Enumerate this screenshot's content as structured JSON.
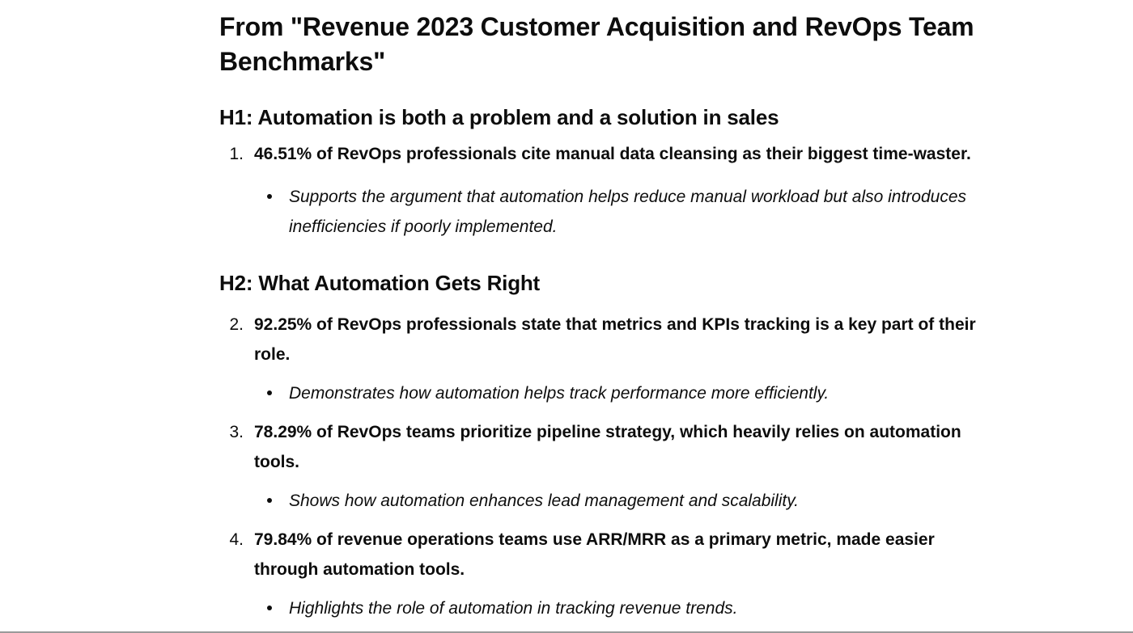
{
  "document": {
    "title": "From \"Revenue 2023 Customer Acquisition and RevOps Team Benchmarks\"",
    "sections": [
      {
        "heading": "H1: Automation is both a problem and a solution in sales",
        "points": [
          {
            "number": "1.",
            "statement": "46.51% of RevOps professionals cite manual data cleansing as their biggest time-waster.",
            "note": "Supports the argument that automation helps reduce manual workload but also introduces inefficiencies if poorly implemented."
          }
        ]
      },
      {
        "heading": "H2: What Automation Gets Right",
        "points": [
          {
            "number": "2.",
            "statement": "92.25% of RevOps professionals state that metrics and KPIs tracking is a key part of their role.",
            "note": "Demonstrates how automation helps track performance more efficiently."
          },
          {
            "number": "3.",
            "statement": "78.29% of RevOps teams prioritize pipeline strategy, which heavily relies on automation tools.",
            "note": "Shows how automation enhances lead management and scalability."
          },
          {
            "number": "4.",
            "statement": "79.84% of revenue operations teams use ARR/MRR as a primary metric, made easier through automation tools.",
            "note": "Highlights the role of automation in tracking revenue trends."
          }
        ]
      }
    ]
  }
}
